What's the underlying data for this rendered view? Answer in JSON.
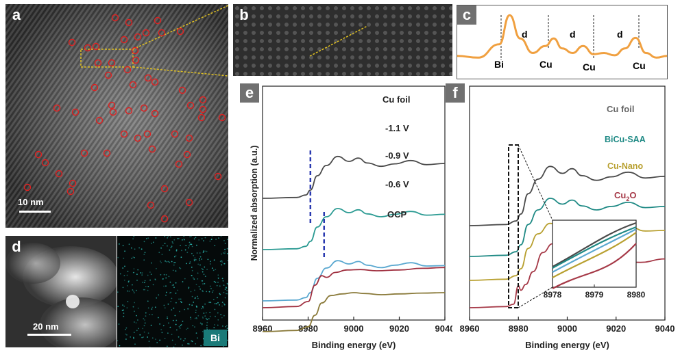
{
  "panels": {
    "a": {
      "letter": "a",
      "scale_bar": "10 nm"
    },
    "b": {
      "letter": "b"
    },
    "c": {
      "letter": "c",
      "labels": [
        "Bi",
        "Cu",
        "Cu",
        "Cu"
      ],
      "spacing": "d"
    },
    "d": {
      "letter": "d",
      "scale_bar": "20 nm",
      "element": "Bi"
    },
    "e": {
      "letter": "e",
      "xlabel": "Binding energy (eV)",
      "ylabel": "Normalized absorption (a.u.)",
      "xticks": [
        "8960",
        "8980",
        "9000",
        "9020",
        "9040"
      ],
      "legend": [
        "Cu foil",
        "-1.1 V",
        "-0.9 V",
        "-0.6 V",
        "OCP"
      ]
    },
    "f": {
      "letter": "f",
      "xlabel": "Binding energy (eV)",
      "xticks": [
        "8960",
        "8980",
        "9000",
        "9020",
        "9040"
      ],
      "legend": [
        "Cu foil",
        "BiCu-SAA",
        "Cu-Nano",
        "Cu",
        "2",
        "O"
      ],
      "inset_xticks": [
        "8978",
        "8979",
        "8980"
      ]
    }
  },
  "colors": {
    "cu_foil": "#4a4a4a",
    "v11": "#2a9a92",
    "v09": "#5aa8d0",
    "v06": "#8a7a3a",
    "ocp": "#a03040",
    "bicu": "#1f8a85",
    "cunano": "#b8a030",
    "cu2o": "#a63a48",
    "dashed_blue": "#2a3ab0",
    "orange": "#f0a040"
  },
  "chart_data": [
    {
      "type": "line",
      "panel": "e",
      "xlabel": "Binding energy (eV)",
      "ylabel": "Normalized absorption (a.u.)",
      "xlim": [
        8960,
        9040
      ],
      "series": [
        {
          "name": "Cu foil",
          "x": [
            8960,
            8975,
            8979,
            8981,
            8984,
            8988,
            8993,
            8998,
            9002,
            9006,
            9012,
            9018,
            9025,
            9032,
            9040
          ],
          "y": [
            0.0,
            0.02,
            0.08,
            0.2,
            0.55,
            0.8,
            1.02,
            0.9,
            0.98,
            0.86,
            0.78,
            0.84,
            0.92,
            0.82,
            0.85
          ]
        },
        {
          "name": "-1.1 V",
          "x": [
            8960,
            8975,
            8979,
            8981,
            8984,
            8988,
            8993,
            8998,
            9002,
            9006,
            9012,
            9018,
            9025,
            9032,
            9040
          ],
          "y": [
            0.0,
            0.02,
            0.08,
            0.2,
            0.55,
            0.8,
            1.0,
            0.9,
            0.97,
            0.87,
            0.8,
            0.86,
            0.93,
            0.84,
            0.86
          ]
        },
        {
          "name": "-0.9 V",
          "x": [
            8960,
            8975,
            8979,
            8981,
            8984,
            8988,
            8993,
            8998,
            9002,
            9006,
            9012,
            9018,
            9025,
            9032,
            9040
          ],
          "y": [
            0.0,
            0.02,
            0.08,
            0.2,
            0.55,
            0.8,
            0.98,
            0.9,
            0.96,
            0.87,
            0.81,
            0.87,
            0.93,
            0.85,
            0.86
          ]
        },
        {
          "name": "-0.6 V",
          "x": [
            8960,
            8975,
            8980,
            8983,
            8986,
            8990,
            8995,
            9000,
            9005,
            9012,
            9020,
            9030,
            9040
          ],
          "y": [
            0.0,
            0.03,
            0.12,
            0.4,
            0.7,
            0.88,
            0.92,
            0.95,
            0.93,
            0.9,
            0.92,
            0.94,
            0.95
          ]
        },
        {
          "name": "OCP",
          "x": [
            8960,
            8975,
            8980,
            8983,
            8986,
            8988,
            8992,
            8997,
            9003,
            9010,
            9020,
            9030,
            9040
          ],
          "y": [
            0.0,
            0.03,
            0.15,
            0.55,
            0.78,
            0.74,
            0.86,
            0.92,
            0.93,
            0.9,
            0.92,
            0.96,
            0.98
          ]
        }
      ]
    },
    {
      "type": "line",
      "panel": "f",
      "xlabel": "Binding energy (eV)",
      "xlim": [
        8960,
        9040
      ],
      "series": [
        {
          "name": "Cu foil",
          "x": [
            8960,
            8975,
            8979,
            8981,
            8984,
            8988,
            8993,
            8998,
            9002,
            9006,
            9012,
            9018,
            9025,
            9032,
            9040
          ],
          "y": [
            0.0,
            0.02,
            0.08,
            0.2,
            0.55,
            0.8,
            1.02,
            0.9,
            0.98,
            0.86,
            0.78,
            0.84,
            0.92,
            0.82,
            0.85
          ]
        },
        {
          "name": "BiCu-SAA",
          "x": [
            8960,
            8975,
            8979,
            8981,
            8984,
            8988,
            8993,
            8998,
            9002,
            9006,
            9012,
            9018,
            9025,
            9032,
            9040
          ],
          "y": [
            0.0,
            0.02,
            0.08,
            0.2,
            0.55,
            0.8,
            1.0,
            0.9,
            0.97,
            0.87,
            0.8,
            0.86,
            0.93,
            0.84,
            0.86
          ]
        },
        {
          "name": "Cu-Nano",
          "x": [
            8960,
            8975,
            8979,
            8981,
            8984,
            8988,
            8993,
            8998,
            9002,
            9006,
            9012,
            9018,
            9025,
            9032,
            9040
          ],
          "y": [
            0.0,
            0.02,
            0.08,
            0.2,
            0.55,
            0.8,
            0.98,
            0.9,
            0.96,
            0.87,
            0.81,
            0.87,
            0.93,
            0.85,
            0.86
          ]
        },
        {
          "name": "Cu2O",
          "x": [
            8960,
            8975,
            8978,
            8980,
            8981,
            8983,
            8986,
            8990,
            8994,
            9000,
            9006,
            9012,
            9020,
            9030,
            9040
          ],
          "y": [
            0.0,
            0.02,
            0.06,
            0.38,
            0.3,
            0.4,
            0.62,
            0.95,
            1.1,
            0.92,
            0.78,
            0.84,
            0.8,
            0.78,
            0.84
          ]
        }
      ]
    },
    {
      "type": "line",
      "panel": "c",
      "series": [
        {
          "x": [
            0,
            0.1,
            0.2,
            0.25,
            0.3,
            0.36,
            0.42,
            0.46,
            0.5,
            0.55,
            0.6,
            0.65,
            0.7,
            0.75,
            0.8,
            0.85,
            0.9,
            0.95,
            1.0
          ],
          "y": [
            0.25,
            0.22,
            0.45,
            0.95,
            0.55,
            0.3,
            0.42,
            0.55,
            0.38,
            0.3,
            0.42,
            0.28,
            0.3,
            0.26,
            0.38,
            0.56,
            0.3,
            0.22,
            0.25
          ]
        }
      ]
    }
  ]
}
